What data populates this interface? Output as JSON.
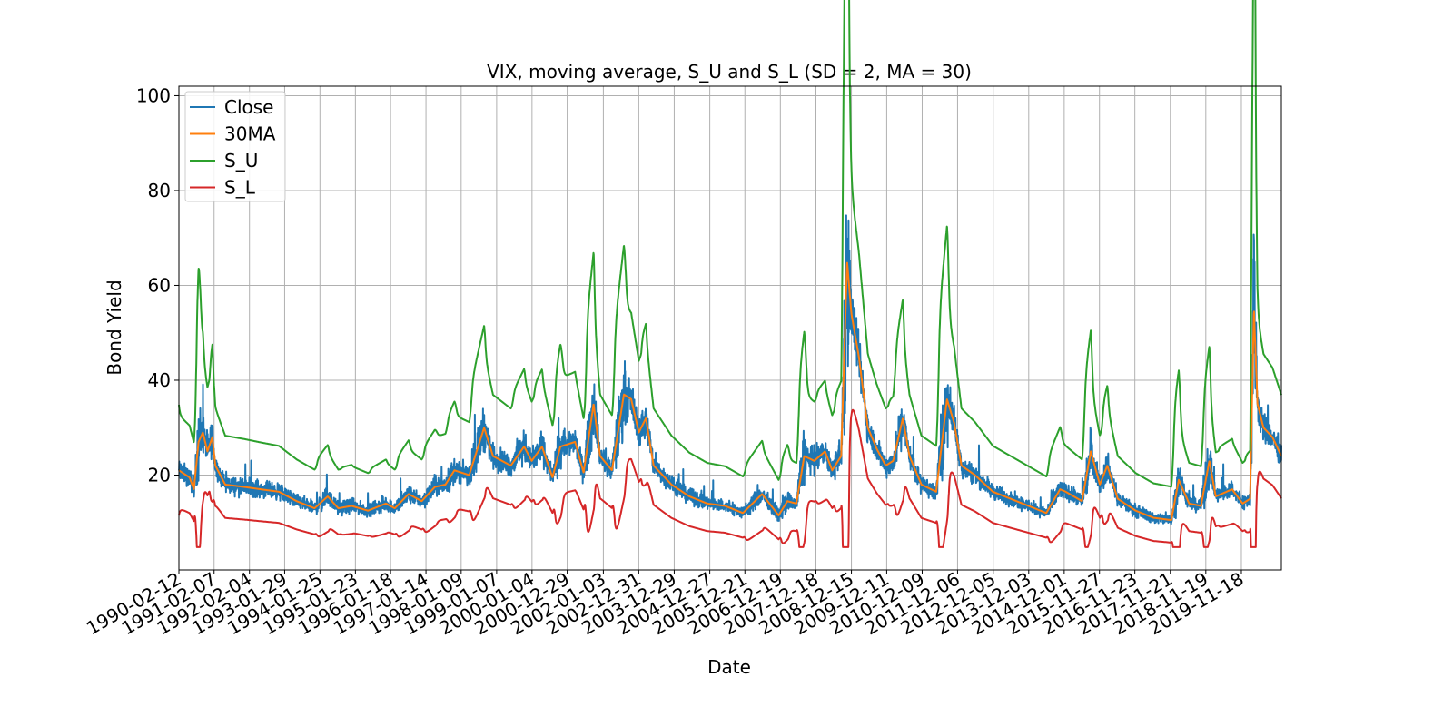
{
  "chart_data": {
    "type": "line",
    "title": "VIX, moving average, S_U and S_L (SD = 2, MA = 30)",
    "xlabel": "Date",
    "ylabel": "Bond Yield",
    "x_start": "1990-02-12",
    "x_end": "2020-12-31",
    "ylim": [
      0,
      102
    ],
    "yticks": [
      20,
      40,
      60,
      80,
      100
    ],
    "xticks": [
      "1990-02-12",
      "1991-02-07",
      "1992-02-04",
      "1993-01-29",
      "1994-01-25",
      "1995-01-23",
      "1996-01-18",
      "1997-01-14",
      "1998-01-09",
      "1999-01-07",
      "2000-01-04",
      "2000-12-29",
      "2002-01-03",
      "2002-12-31",
      "2003-12-29",
      "2004-12-27",
      "2005-12-21",
      "2006-12-19",
      "2007-12-18",
      "2008-12-15",
      "2009-12-11",
      "2010-12-09",
      "2011-12-06",
      "2012-12-05",
      "2013-12-03",
      "2014-12-01",
      "2015-11-27",
      "2016-11-23",
      "2017-11-21",
      "2018-11-19",
      "2019-11-18"
    ],
    "grid": true,
    "legend_position": "top-left",
    "series": [
      {
        "name": "Close",
        "color": "#1f77b4"
      },
      {
        "name": "30MA",
        "color": "#ff7f0e"
      },
      {
        "name": "S_U",
        "color": "#2ca02c"
      },
      {
        "name": "S_L",
        "color": "#d62728"
      }
    ],
    "ma_points": [
      [
        "1990-02-12",
        21.0
      ],
      [
        "1990-06-01",
        19.5
      ],
      [
        "1990-07-15",
        17.0
      ],
      [
        "1990-09-01",
        27.0
      ],
      [
        "1990-10-15",
        29.0
      ],
      [
        "1990-12-01",
        25.0
      ],
      [
        "1991-01-20",
        28.0
      ],
      [
        "1991-02-20",
        22.0
      ],
      [
        "1991-06-01",
        18.0
      ],
      [
        "1991-12-15",
        17.5
      ],
      [
        "1992-06-01",
        17.0
      ],
      [
        "1992-12-01",
        16.5
      ],
      [
        "1993-06-01",
        14.5
      ],
      [
        "1993-12-01",
        13.0
      ],
      [
        "1994-04-15",
        15.5
      ],
      [
        "1994-08-01",
        13.0
      ],
      [
        "1994-12-15",
        13.5
      ],
      [
        "1995-06-01",
        12.5
      ],
      [
        "1995-12-01",
        14.0
      ],
      [
        "1996-03-01",
        13.0
      ],
      [
        "1996-07-20",
        16.0
      ],
      [
        "1996-12-01",
        14.5
      ],
      [
        "1997-04-15",
        17.5
      ],
      [
        "1997-08-01",
        18.0
      ],
      [
        "1997-11-01",
        21.0
      ],
      [
        "1998-04-01",
        20.0
      ],
      [
        "1998-09-01",
        30.0
      ],
      [
        "1998-12-01",
        24.0
      ],
      [
        "1999-06-01",
        22.0
      ],
      [
        "1999-10-15",
        26.0
      ],
      [
        "2000-01-01",
        23.0
      ],
      [
        "2000-04-15",
        26.0
      ],
      [
        "2000-08-01",
        19.5
      ],
      [
        "2000-10-20",
        26.0
      ],
      [
        "2001-03-20",
        27.0
      ],
      [
        "2001-06-15",
        20.5
      ],
      [
        "2001-09-25",
        35.0
      ],
      [
        "2001-12-01",
        24.0
      ],
      [
        "2002-04-01",
        21.0
      ],
      [
        "2002-08-01",
        37.0
      ],
      [
        "2002-10-15",
        36.0
      ],
      [
        "2003-01-01",
        29.0
      ],
      [
        "2003-03-15",
        32.0
      ],
      [
        "2003-06-01",
        22.0
      ],
      [
        "2003-12-01",
        18.0
      ],
      [
        "2004-06-01",
        15.5
      ],
      [
        "2004-12-01",
        14.0
      ],
      [
        "2005-06-01",
        13.5
      ],
      [
        "2005-12-01",
        12.0
      ],
      [
        "2006-06-15",
        16.0
      ],
      [
        "2006-12-01",
        11.5
      ],
      [
        "2007-03-01",
        14.5
      ],
      [
        "2007-06-01",
        14.0
      ],
      [
        "2007-08-20",
        24.0
      ],
      [
        "2007-12-01",
        23.0
      ],
      [
        "2008-03-20",
        25.0
      ],
      [
        "2008-06-01",
        21.0
      ],
      [
        "2008-09-01",
        24.0
      ],
      [
        "2008-11-01",
        65.0
      ],
      [
        "2008-12-15",
        54.0
      ],
      [
        "2009-03-01",
        45.0
      ],
      [
        "2009-06-01",
        30.0
      ],
      [
        "2009-09-01",
        25.5
      ],
      [
        "2009-12-01",
        22.0
      ],
      [
        "2010-02-15",
        23.0
      ],
      [
        "2010-05-25",
        32.0
      ],
      [
        "2010-08-01",
        24.0
      ],
      [
        "2010-12-01",
        18.0
      ],
      [
        "2011-05-01",
        16.5
      ],
      [
        "2011-08-20",
        36.0
      ],
      [
        "2011-11-01",
        31.0
      ],
      [
        "2012-01-15",
        22.0
      ],
      [
        "2012-06-01",
        20.0
      ],
      [
        "2012-12-01",
        16.5
      ],
      [
        "2013-06-01",
        15.0
      ],
      [
        "2013-12-01",
        13.5
      ],
      [
        "2014-06-01",
        12.0
      ],
      [
        "2014-10-20",
        17.0
      ],
      [
        "2014-12-15",
        16.5
      ],
      [
        "2015-06-01",
        14.5
      ],
      [
        "2015-08-30",
        25.0
      ],
      [
        "2015-12-01",
        18.0
      ],
      [
        "2016-02-15",
        22.0
      ],
      [
        "2016-06-01",
        15.0
      ],
      [
        "2016-12-01",
        12.5
      ],
      [
        "2017-06-01",
        11.0
      ],
      [
        "2017-12-01",
        10.5
      ],
      [
        "2018-02-15",
        19.0
      ],
      [
        "2018-06-01",
        14.0
      ],
      [
        "2018-10-01",
        13.5
      ],
      [
        "2018-12-25",
        23.0
      ],
      [
        "2019-03-01",
        15.5
      ],
      [
        "2019-08-15",
        17.0
      ],
      [
        "2019-12-01",
        14.0
      ],
      [
        "2020-02-15",
        15.0
      ],
      [
        "2020-03-25",
        55.0
      ],
      [
        "2020-05-01",
        35.0
      ],
      [
        "2020-07-01",
        30.0
      ],
      [
        "2020-10-01",
        28.0
      ],
      [
        "2020-12-31",
        24.0
      ]
    ]
  }
}
